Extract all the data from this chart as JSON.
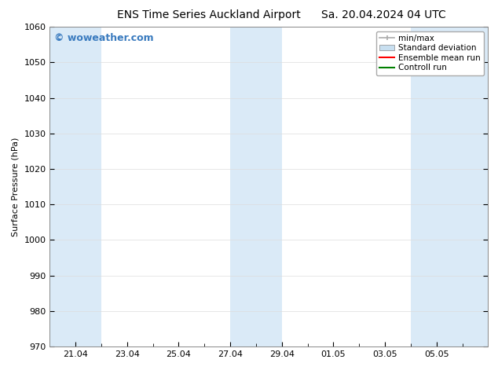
{
  "title_left": "ENS Time Series Auckland Airport",
  "title_right": "Sa. 20.04.2024 04 UTC",
  "ylabel": "Surface Pressure (hPa)",
  "ylim": [
    970,
    1060
  ],
  "yticks": [
    970,
    980,
    990,
    1000,
    1010,
    1020,
    1030,
    1040,
    1050,
    1060
  ],
  "x_tick_labels": [
    "21.04",
    "23.04",
    "25.04",
    "27.04",
    "29.04",
    "01.05",
    "03.05",
    "05.05"
  ],
  "x_tick_positions": [
    0,
    2,
    4,
    6,
    8,
    10,
    12,
    14
  ],
  "xlim": [
    -1,
    16
  ],
  "shaded_bands": [
    {
      "x_start": -1,
      "x_end": 1,
      "color": "#daeaf7"
    },
    {
      "x_start": 6,
      "x_end": 8,
      "color": "#daeaf7"
    },
    {
      "x_start": 13,
      "x_end": 16,
      "color": "#daeaf7"
    }
  ],
  "background_color": "#ffffff",
  "watermark_text": "© woweather.com",
  "watermark_color": "#3a7bbf",
  "legend_items": [
    {
      "label": "min/max",
      "color": "#aaaaaa",
      "type": "errorbar"
    },
    {
      "label": "Standard deviation",
      "color": "#c8dff0",
      "type": "bar"
    },
    {
      "label": "Ensemble mean run",
      "color": "#ff0000",
      "type": "line"
    },
    {
      "label": "Controll run",
      "color": "#008000",
      "type": "line"
    }
  ],
  "title_fontsize": 10,
  "tick_fontsize": 8,
  "ylabel_fontsize": 8,
  "legend_fontsize": 7.5,
  "watermark_fontsize": 9
}
